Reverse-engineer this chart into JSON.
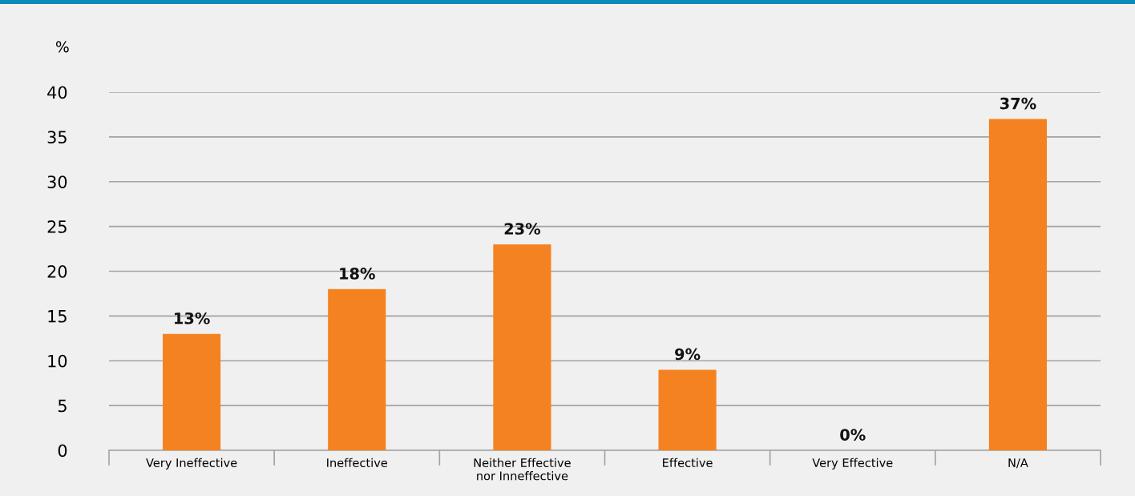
{
  "chart_data": {
    "type": "bar",
    "ylabel": "%",
    "categories": [
      "Very Ineffective",
      "Ineffective",
      "Neither Effective\nnor Inneffective",
      "Effective",
      "Very Effective",
      "N/A"
    ],
    "values": [
      13,
      18,
      23,
      9,
      0,
      37
    ],
    "value_labels": [
      "13%",
      "18%",
      "23%",
      "9%",
      "0%",
      "37%"
    ],
    "color": "#f58220",
    "ylim": [
      0,
      40
    ],
    "yticks": [
      0,
      5,
      10,
      15,
      20,
      25,
      30,
      35,
      40
    ],
    "grid": "y"
  }
}
